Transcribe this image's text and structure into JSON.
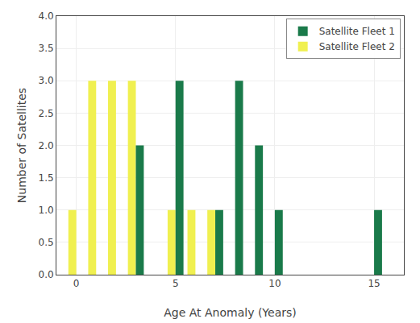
{
  "chart_data": {
    "type": "bar",
    "x": [
      0,
      1,
      2,
      3,
      4,
      5,
      6,
      7,
      8,
      9,
      10,
      15
    ],
    "series": [
      {
        "name": "Satellite Fleet 2",
        "color": "#f0f050",
        "values": [
          1,
          3,
          3,
          3,
          0,
          1,
          1,
          1,
          0,
          0,
          0,
          0
        ]
      },
      {
        "name": "Satellite Fleet 1",
        "color": "#1a7a4a",
        "values": [
          0,
          0,
          0,
          2,
          0,
          3,
          0,
          1,
          3,
          2,
          1,
          1
        ]
      }
    ],
    "xlabel": "Age At Anomaly (Years)",
    "ylabel": "Number of Satellites",
    "xlim": [
      -1,
      16.5
    ],
    "xticks": [
      0,
      5,
      10,
      15
    ],
    "ylim": [
      0,
      4
    ],
    "yticks": [
      {
        "value": 0,
        "label": "0.0"
      },
      {
        "value": 0.5,
        "label": "0.5"
      },
      {
        "value": 1,
        "label": "1.0"
      },
      {
        "value": 1.5,
        "label": "1.5"
      },
      {
        "value": 2,
        "label": "2.0"
      },
      {
        "value": 2.5,
        "label": "2.5"
      },
      {
        "value": 3,
        "label": "3.0"
      },
      {
        "value": 3.5,
        "label": "3.5"
      },
      {
        "value": 4,
        "label": "4.0"
      }
    ],
    "grid": true,
    "legend": "upper right"
  }
}
